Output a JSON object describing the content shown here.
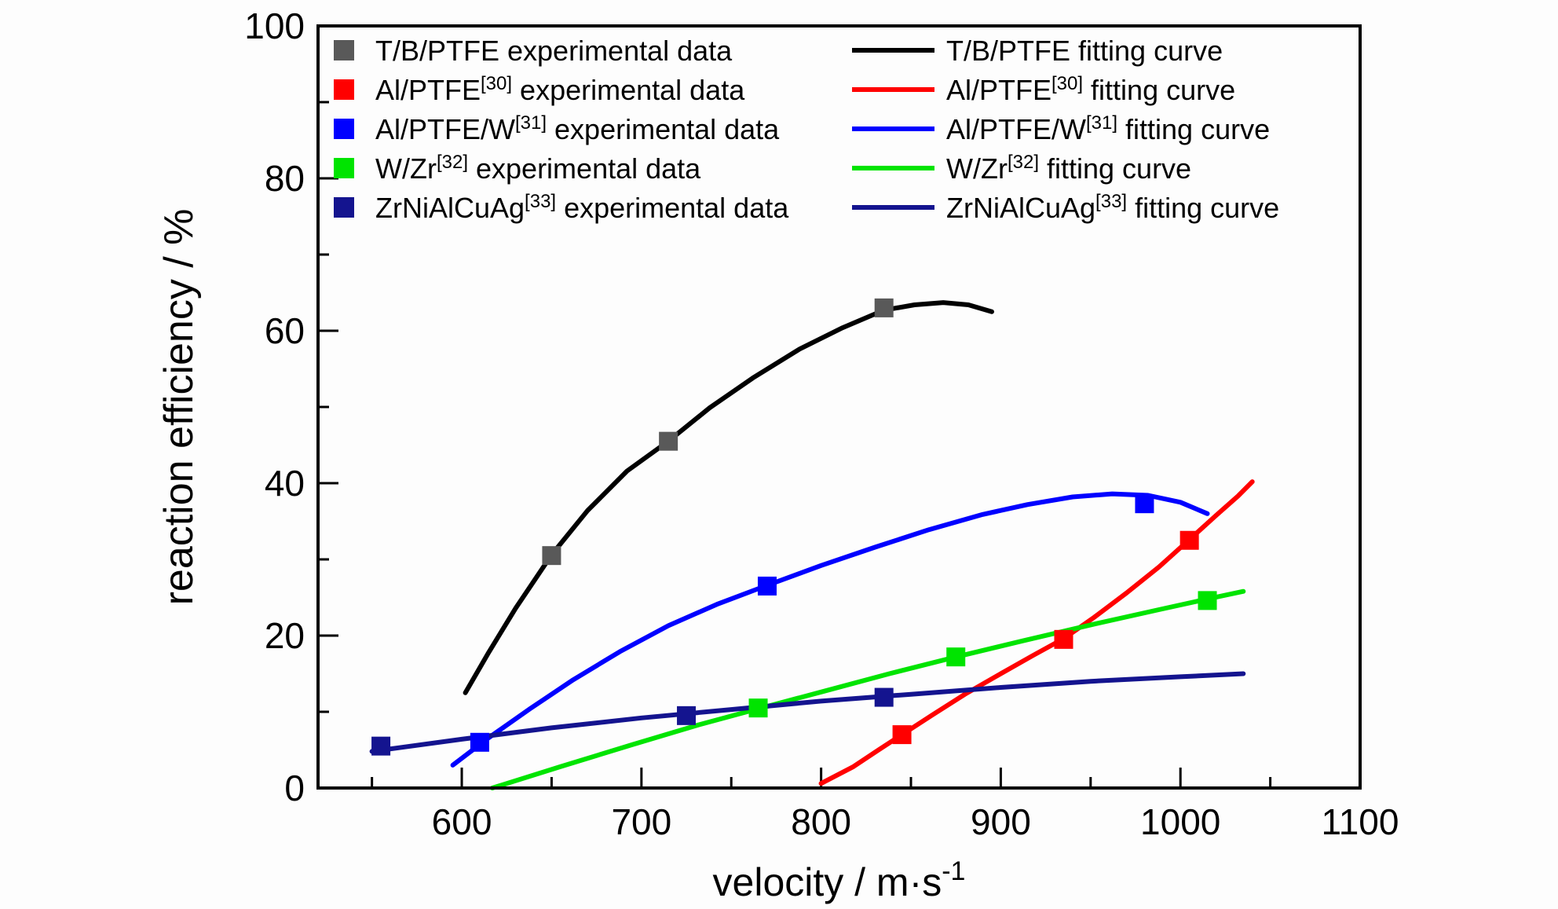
{
  "chart_data": {
    "type": "scatter",
    "title": "",
    "xlabel": "velocity / m·s⁻¹",
    "xlabel_parts": {
      "base": "velocity / m·s",
      "sup": "-1"
    },
    "ylabel": "reaction efficiency / %",
    "xlim": [
      520,
      1100
    ],
    "ylim": [
      0,
      100
    ],
    "x_major_ticks": [
      600,
      700,
      800,
      900,
      1000,
      1100
    ],
    "x_minor_ticks": [
      550,
      650,
      750,
      850,
      950,
      1050
    ],
    "y_major_ticks": [
      0,
      20,
      40,
      60,
      80,
      100
    ],
    "y_minor_ticks": [
      10,
      30,
      50,
      70,
      90
    ],
    "grid": false,
    "legend": {
      "position": "inside-top-left-two-columns",
      "exp_suffix": "experimental data",
      "fit_suffix": "fitting curve"
    },
    "series": [
      {
        "name": "T/B/PTFE",
        "ref": "",
        "marker_color": "#595959",
        "line_color": "#000000",
        "experimental_points": [
          [
            650,
            30.5
          ],
          [
            715,
            45.5
          ],
          [
            835,
            63
          ]
        ],
        "fitting_curve": [
          [
            602,
            12.5
          ],
          [
            615,
            17.8
          ],
          [
            630,
            23.6
          ],
          [
            650,
            30.6
          ],
          [
            670,
            36.4
          ],
          [
            692,
            41.6
          ],
          [
            715,
            45.5
          ],
          [
            738,
            49.9
          ],
          [
            762,
            53.8
          ],
          [
            788,
            57.6
          ],
          [
            812,
            60.4
          ],
          [
            835,
            62.7
          ],
          [
            852,
            63.4
          ],
          [
            868,
            63.7
          ],
          [
            882,
            63.4
          ],
          [
            895,
            62.5
          ]
        ]
      },
      {
        "name": "Al/PTFE",
        "ref": "[30]",
        "marker_color": "#ff0000",
        "line_color": "#ff0000",
        "experimental_points": [
          [
            845,
            7
          ],
          [
            935,
            19.5
          ],
          [
            1005,
            32.5
          ]
        ],
        "fitting_curve": [
          [
            800,
            0.6
          ],
          [
            818,
            2.8
          ],
          [
            832,
            5
          ],
          [
            845,
            7
          ],
          [
            862,
            9.6
          ],
          [
            880,
            12.3
          ],
          [
            900,
            15
          ],
          [
            918,
            17.4
          ],
          [
            935,
            19.6
          ],
          [
            952,
            22.4
          ],
          [
            970,
            25.6
          ],
          [
            988,
            29
          ],
          [
            1005,
            32.6
          ],
          [
            1020,
            35.8
          ],
          [
            1032,
            38.3
          ],
          [
            1040,
            40.2
          ]
        ]
      },
      {
        "name": "Al/PTFE/W",
        "ref": "[31]",
        "marker_color": "#0000ff",
        "line_color": "#0000ff",
        "experimental_points": [
          [
            610,
            6
          ],
          [
            770,
            26.5
          ],
          [
            980,
            37.3
          ]
        ],
        "fitting_curve": [
          [
            595,
            3
          ],
          [
            615,
            6.6
          ],
          [
            638,
            10.4
          ],
          [
            662,
            14.2
          ],
          [
            688,
            17.9
          ],
          [
            715,
            21.3
          ],
          [
            742,
            24.1
          ],
          [
            770,
            26.6
          ],
          [
            800,
            29.2
          ],
          [
            830,
            31.6
          ],
          [
            860,
            33.9
          ],
          [
            890,
            35.9
          ],
          [
            915,
            37.2
          ],
          [
            940,
            38.2
          ],
          [
            962,
            38.6
          ],
          [
            982,
            38.4
          ],
          [
            1000,
            37.5
          ],
          [
            1015,
            36
          ]
        ]
      },
      {
        "name": "W/Zr",
        "ref": "[32]",
        "marker_color": "#00e400",
        "line_color": "#00e400",
        "experimental_points": [
          [
            765,
            10.5
          ],
          [
            875,
            17.2
          ],
          [
            1015,
            24.6
          ]
        ],
        "fitting_curve": [
          [
            617,
            0
          ],
          [
            655,
            2.8
          ],
          [
            695,
            5.7
          ],
          [
            732,
            8.3
          ],
          [
            765,
            10.4
          ],
          [
            800,
            12.6
          ],
          [
            838,
            15
          ],
          [
            875,
            17.2
          ],
          [
            912,
            19.3
          ],
          [
            950,
            21.4
          ],
          [
            988,
            23.4
          ],
          [
            1015,
            24.8
          ],
          [
            1035,
            25.8
          ]
        ]
      },
      {
        "name": "ZrNiAlCuAg",
        "ref": "[33]",
        "marker_color": "#14148f",
        "line_color": "#14148f",
        "experimental_points": [
          [
            555,
            5.5
          ],
          [
            725,
            9.5
          ],
          [
            835,
            11.9
          ]
        ],
        "fitting_curve": [
          [
            550,
            4.8
          ],
          [
            600,
            6.4
          ],
          [
            650,
            7.9
          ],
          [
            700,
            9.2
          ],
          [
            750,
            10.3
          ],
          [
            800,
            11.4
          ],
          [
            850,
            12.3
          ],
          [
            900,
            13.2
          ],
          [
            950,
            14
          ],
          [
            1000,
            14.6
          ],
          [
            1035,
            15
          ]
        ]
      }
    ]
  }
}
